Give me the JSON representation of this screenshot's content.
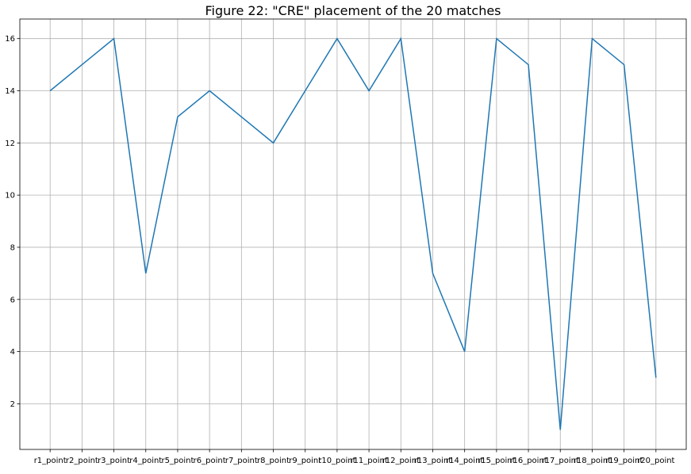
{
  "chart_data": {
    "type": "line",
    "title": "Figure 22: \"CRE\" placement of the 20 matches",
    "xlabel": "",
    "ylabel": "",
    "categories": [
      "r1_point",
      "r2_point",
      "r3_point",
      "r4_point",
      "r5_point",
      "r6_point",
      "r7_point",
      "r8_point",
      "r9_point",
      "r10_point",
      "r11_point",
      "r12_point",
      "r13_point",
      "r14_point",
      "r15_point",
      "r16_point",
      "r17_point",
      "r18_point",
      "r19_point",
      "r20_point"
    ],
    "series": [
      {
        "values": [
          14,
          15,
          16,
          7,
          13,
          14,
          13,
          12,
          14,
          16,
          14,
          16,
          7,
          4,
          16,
          15,
          1,
          16,
          15,
          3
        ],
        "color": "#1f77b4"
      }
    ],
    "ylim": [
      0.25,
      16.75
    ],
    "yticks": [
      2,
      4,
      6,
      8,
      10,
      12,
      14,
      16
    ],
    "grid": true
  }
}
